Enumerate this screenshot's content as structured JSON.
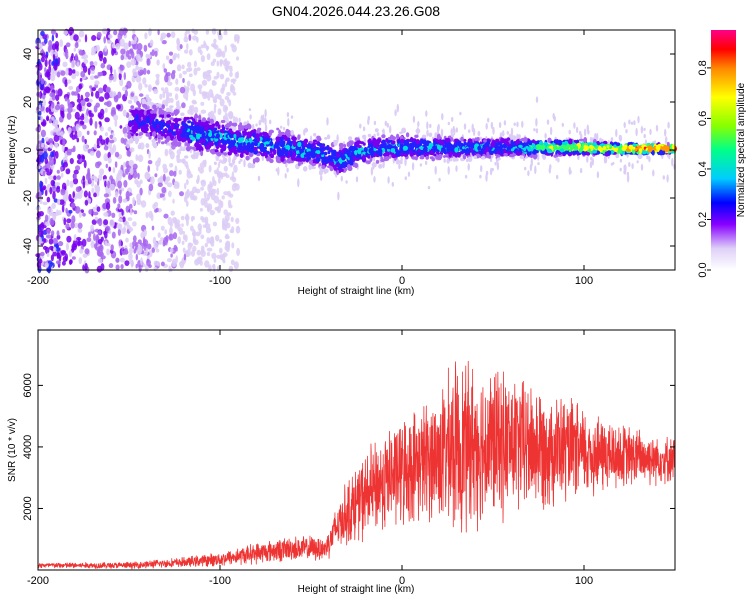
{
  "title": "GN04.2026.044.23.26.G08",
  "chart_data": [
    {
      "type": "heatmap",
      "name": "spectrogram",
      "xlabel": "Height of straight line (km)",
      "ylabel": "Frequency (Hz)",
      "xlim": [
        -200,
        150
      ],
      "ylim": [
        -50,
        50
      ],
      "xticks": [
        -200,
        -100,
        0,
        100
      ],
      "yticks": [
        -40,
        -20,
        0,
        20,
        40
      ],
      "colorbar": {
        "label": "Normalized spectral amplitude",
        "range": [
          0,
          0.95
        ],
        "ticks": [
          0.0,
          0.2,
          0.4,
          0.6,
          0.8
        ],
        "tick_labels": [
          "0.0",
          "0.2",
          "0.4",
          "0.6",
          "0.8"
        ]
      },
      "ridge": {
        "x": [
          -145,
          -130,
          -115,
          -100,
          -85,
          -70,
          -55,
          -40,
          -35,
          -25,
          -10,
          0,
          20,
          40,
          60,
          80,
          100,
          120,
          150
        ],
        "freq": [
          12,
          10,
          7,
          5,
          3,
          2,
          0,
          -2,
          -5,
          -1,
          1,
          1,
          1,
          1,
          1,
          1,
          1,
          0.5,
          0.5
        ]
      }
    },
    {
      "type": "line",
      "name": "snr",
      "xlabel": "Height of straight line (km)",
      "ylabel": "SNR (10 * v/v)",
      "xlim": [
        -200,
        150
      ],
      "ylim": [
        0,
        7800
      ],
      "xticks": [
        -200,
        -100,
        0,
        100
      ],
      "yticks": [
        2000,
        4000,
        6000
      ],
      "color": "#ee3333",
      "envelope": {
        "x": [
          -200,
          -150,
          -120,
          -100,
          -80,
          -60,
          -42,
          -35,
          -30,
          -20,
          -10,
          0,
          10,
          20,
          30,
          40,
          60,
          80,
          100,
          120,
          150
        ],
        "mean": [
          150,
          150,
          250,
          350,
          550,
          700,
          700,
          1500,
          1900,
          2400,
          2900,
          3200,
          3500,
          3700,
          4000,
          4100,
          4100,
          4000,
          3800,
          3700,
          3600
        ],
        "amp": [
          100,
          120,
          180,
          250,
          380,
          450,
          450,
          900,
          1200,
          1600,
          1800,
          2000,
          2100,
          2400,
          3200,
          3000,
          2600,
          2200,
          1700,
          1200,
          800
        ]
      }
    }
  ]
}
